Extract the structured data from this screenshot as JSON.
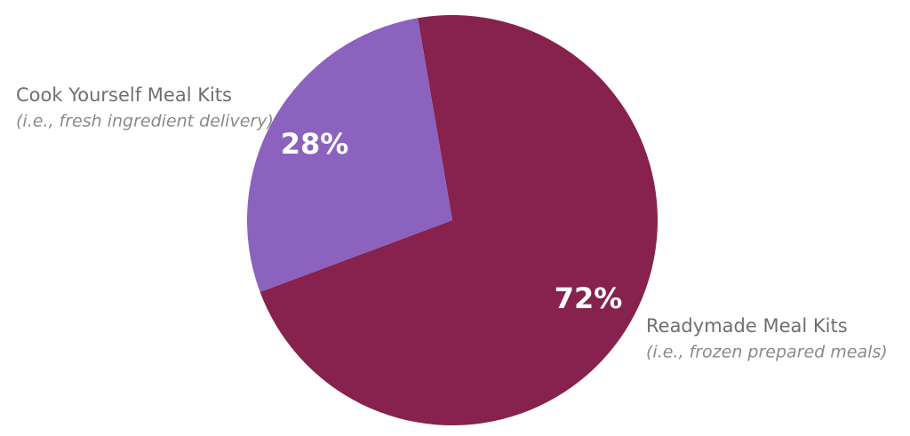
{
  "chart_data": {
    "type": "pie",
    "categories": [
      "Readymade Meal Kits",
      "Cook Yourself Meal Kits"
    ],
    "sublabels": [
      "(i.e., frozen prepared meals)",
      "(i.e., fresh ingredient delivery)"
    ],
    "values": [
      72,
      28
    ],
    "value_labels": [
      "72%",
      "28%"
    ],
    "colors": [
      "#86224d",
      "#8b62be"
    ]
  }
}
